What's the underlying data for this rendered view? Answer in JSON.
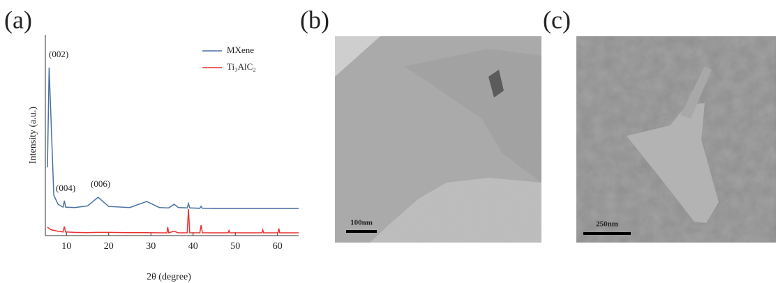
{
  "chart_data": {
    "type": "line",
    "x_label": "2θ (degree)",
    "y_label": "Intensity (a.u.)",
    "xlim": [
      5,
      65
    ],
    "xticks": [
      10,
      20,
      30,
      40,
      50,
      60
    ],
    "ylim": [
      0,
      100
    ],
    "annotations": [
      "(002)",
      "(004)",
      "(006)"
    ],
    "legend": "upper right",
    "x": [
      5.5,
      5.9,
      6.3,
      7,
      8,
      9.2,
      9.5,
      9.8,
      12,
      15,
      17.5,
      20,
      25,
      29,
      32,
      33.8,
      34,
      34.2,
      35.5,
      36.5,
      38.6,
      38.9,
      39.2,
      41.6,
      41.9,
      42.2,
      45,
      48.3,
      48.5,
      48.7,
      56.3,
      56.5,
      56.7,
      60.1,
      60.3,
      60.5,
      65
    ],
    "series": [
      {
        "name": "MXene",
        "color": "#4a6fa5",
        "values": [
          34,
          83.7,
          60,
          20.1,
          15.6,
          14.2,
          17.4,
          14.2,
          14,
          14.8,
          19.1,
          14.5,
          14,
          17,
          14,
          13.8,
          13.8,
          13.8,
          15.6,
          14,
          13.8,
          16,
          13.8,
          13.6,
          14.6,
          13.6,
          13.5,
          13.5,
          13.5,
          13.5,
          13.5,
          13.5,
          13.5,
          13.5,
          13.5,
          13.5,
          13.5
        ]
      },
      {
        "name": "Ti₃AlC₂",
        "color": "#e8312f",
        "values": [
          4.2,
          3.5,
          3,
          2.6,
          2.2,
          1.8,
          4.5,
          1.8,
          1.6,
          1.5,
          1.6,
          1.6,
          1.5,
          1.5,
          1.4,
          1.4,
          4.2,
          1.4,
          2.2,
          1.4,
          1.4,
          13.2,
          1.4,
          1.4,
          5.2,
          1.4,
          1.4,
          1.4,
          2.5,
          1.4,
          1.4,
          2.8,
          1.4,
          1.4,
          3.6,
          1.4,
          1.4
        ]
      }
    ]
  },
  "panels": {
    "labels": [
      "(a)",
      "(b)",
      "(c)"
    ],
    "scale_bars": [
      "100nm",
      "250nm"
    ]
  }
}
